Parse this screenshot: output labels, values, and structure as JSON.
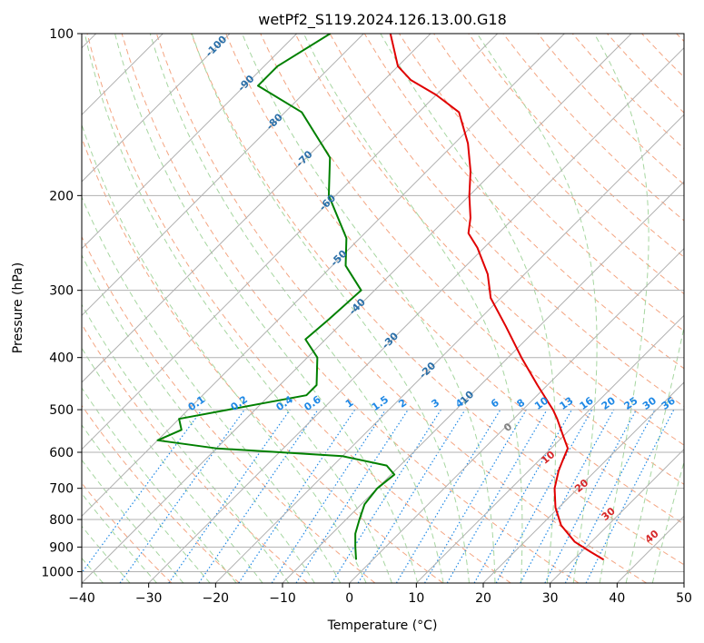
{
  "chart_data": {
    "type": "line",
    "title": "wetPf2_S119.2024.126.13.00.G18",
    "xlabel": "Temperature (°C)",
    "ylabel": "Pressure (hPa)",
    "xlim": [
      -40,
      50
    ],
    "ylim": [
      1050,
      100
    ],
    "y_scale": "log",
    "skew_angle_deg": 45,
    "grid": true,
    "x_ticks": [
      -40,
      -30,
      -20,
      -10,
      0,
      10,
      20,
      30,
      40,
      50
    ],
    "y_ticks": [
      100,
      200,
      300,
      400,
      500,
      600,
      700,
      800,
      900,
      1000
    ],
    "temperature_profile": {
      "color": "#e00000",
      "points": [
        {
          "p": 950,
          "t": 34.5
        },
        {
          "p": 920,
          "t": 31.5
        },
        {
          "p": 880,
          "t": 27.5
        },
        {
          "p": 820,
          "t": 23.0
        },
        {
          "p": 760,
          "t": 19.5
        },
        {
          "p": 700,
          "t": 16.5
        },
        {
          "p": 650,
          "t": 14.5
        },
        {
          "p": 620,
          "t": 13.5
        },
        {
          "p": 590,
          "t": 12.5
        },
        {
          "p": 560,
          "t": 10.0
        },
        {
          "p": 520,
          "t": 6.5
        },
        {
          "p": 500,
          "t": 4.5
        },
        {
          "p": 450,
          "t": -1.5
        },
        {
          "p": 400,
          "t": -8.0
        },
        {
          "p": 350,
          "t": -15.0
        },
        {
          "p": 310,
          "t": -21.5
        },
        {
          "p": 280,
          "t": -25.5
        },
        {
          "p": 250,
          "t": -31.0
        },
        {
          "p": 235,
          "t": -34.5
        },
        {
          "p": 220,
          "t": -36.5
        },
        {
          "p": 200,
          "t": -40.0
        },
        {
          "p": 180,
          "t": -43.5
        },
        {
          "p": 160,
          "t": -48.0
        },
        {
          "p": 140,
          "t": -54.0
        },
        {
          "p": 130,
          "t": -60.0
        },
        {
          "p": 122,
          "t": -66.0
        },
        {
          "p": 115,
          "t": -70.0
        },
        {
          "p": 100,
          "t": -76.0
        }
      ]
    },
    "dewpoint_profile": {
      "color": "#008000",
      "points": [
        {
          "p": 950,
          "t": -2.5
        },
        {
          "p": 900,
          "t": -4.5
        },
        {
          "p": 850,
          "t": -6.5
        },
        {
          "p": 800,
          "t": -8.0
        },
        {
          "p": 750,
          "t": -9.5
        },
        {
          "p": 700,
          "t": -10.0
        },
        {
          "p": 660,
          "t": -9.5
        },
        {
          "p": 635,
          "t": -12.0
        },
        {
          "p": 610,
          "t": -20.0
        },
        {
          "p": 590,
          "t": -40.0
        },
        {
          "p": 570,
          "t": -50.0
        },
        {
          "p": 545,
          "t": -48.0
        },
        {
          "p": 520,
          "t": -50.0
        },
        {
          "p": 500,
          "t": -44.0
        },
        {
          "p": 470,
          "t": -34.5
        },
        {
          "p": 450,
          "t": -34.5
        },
        {
          "p": 400,
          "t": -38.5
        },
        {
          "p": 370,
          "t": -43.0
        },
        {
          "p": 340,
          "t": -42.5
        },
        {
          "p": 300,
          "t": -42.0
        },
        {
          "p": 270,
          "t": -48.0
        },
        {
          "p": 240,
          "t": -52.0
        },
        {
          "p": 200,
          "t": -61.0
        },
        {
          "p": 170,
          "t": -66.5
        },
        {
          "p": 140,
          "t": -77.5
        },
        {
          "p": 125,
          "t": -88.0
        },
        {
          "p": 115,
          "t": -88.0
        },
        {
          "p": 100,
          "t": -85.0
        }
      ]
    },
    "isotherm_labels": [
      "-100",
      "-90",
      "-80",
      "-70",
      "-60",
      "-50",
      "-40",
      "-30",
      "-20",
      "-10"
    ],
    "mixing_ratio_labels": [
      "0.1",
      "0.2",
      "0.4",
      "0.6",
      "1",
      "1.5",
      "2",
      "3",
      "4",
      "6",
      "8",
      "10",
      "13",
      "16",
      "20",
      "25",
      "30",
      "36"
    ],
    "moist_adiabat_labels": [
      "0",
      "10",
      "20",
      "30",
      "40"
    ]
  },
  "colors": {
    "grid": "#b0b0b0",
    "isotherm": "#808080",
    "dry_adiabat": "#f4a582",
    "moist_adiabat": "#a6d6a0",
    "mixing_ratio": "#1e88e5",
    "isotherm_label": "#2a6fa8",
    "moist_label": "#d62728",
    "moist_zero_label": "#808080"
  }
}
